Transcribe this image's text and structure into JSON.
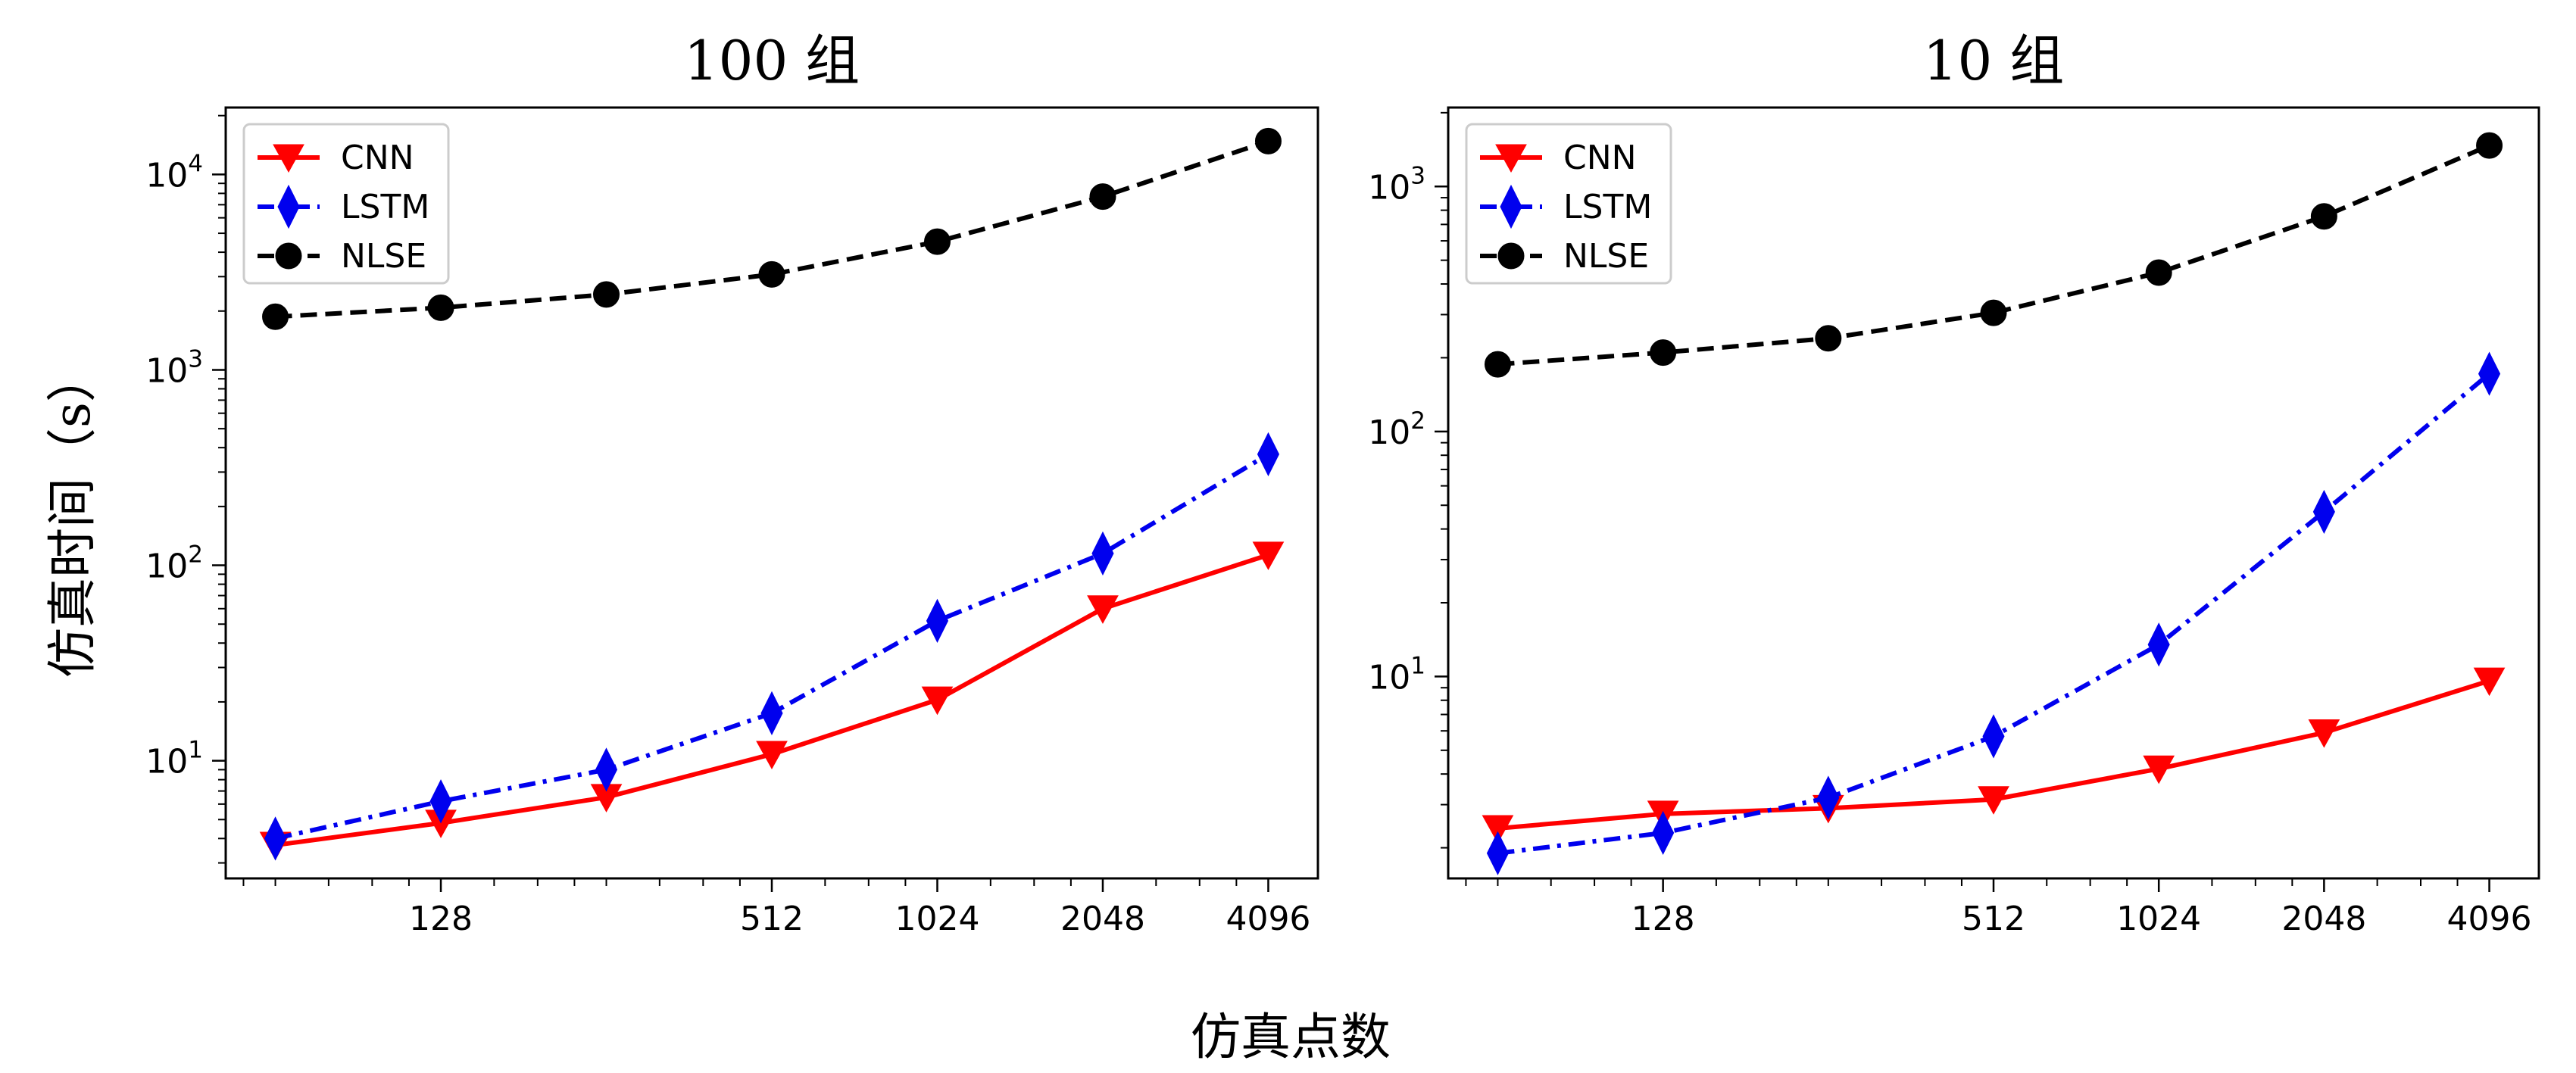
{
  "figure": {
    "ylabel": "仿真时间（s）",
    "xlabel": "仿真点数"
  },
  "colors": {
    "CNN": "#ff0000",
    "LSTM": "#0000ee",
    "NLSE": "#000000"
  },
  "chart_data": [
    {
      "type": "line",
      "title": "100 组",
      "xscale": "log2",
      "yscale": "log10",
      "x": [
        64,
        128,
        256,
        512,
        1024,
        2048,
        4096
      ],
      "xticks": [
        "128",
        "512",
        "1024",
        "2048",
        "4096"
      ],
      "xtick_values": [
        128,
        512,
        1024,
        2048,
        4096
      ],
      "yticks": [
        10,
        100,
        1000,
        10000
      ],
      "ytick_exponents": [
        "1",
        "2",
        "3",
        "4"
      ],
      "ylim": [
        2.5,
        22000
      ],
      "legend_position": "top-left",
      "series": [
        {
          "name": "CNN",
          "marker": "triangle-down",
          "linestyle": "solid",
          "values": [
            3.7,
            4.8,
            6.5,
            10.8,
            20.5,
            60,
            113
          ]
        },
        {
          "name": "LSTM",
          "marker": "thin-diamond",
          "linestyle": "dash-dot",
          "values": [
            4.0,
            6.2,
            9.0,
            17.5,
            52,
            115,
            370
          ]
        },
        {
          "name": "NLSE",
          "marker": "circle",
          "linestyle": "dashed",
          "values": [
            1870,
            2080,
            2430,
            3080,
            4530,
            7700,
            14800
          ]
        }
      ]
    },
    {
      "type": "line",
      "title": "10 组",
      "xscale": "log2",
      "yscale": "log10",
      "x": [
        64,
        128,
        256,
        512,
        1024,
        2048,
        4096
      ],
      "xticks": [
        "128",
        "512",
        "1024",
        "2048",
        "4096"
      ],
      "xtick_values": [
        128,
        512,
        1024,
        2048,
        4096
      ],
      "yticks": [
        10,
        100,
        1000
      ],
      "ytick_exponents": [
        "1",
        "2",
        "3"
      ],
      "ylim": [
        1.5,
        2100
      ],
      "legend_position": "top-left",
      "series": [
        {
          "name": "CNN",
          "marker": "triangle-down",
          "linestyle": "solid",
          "values": [
            2.4,
            2.75,
            2.9,
            3.15,
            4.2,
            5.9,
            9.6
          ]
        },
        {
          "name": "LSTM",
          "marker": "thin-diamond",
          "linestyle": "dash-dot",
          "values": [
            1.9,
            2.3,
            3.2,
            5.7,
            13.5,
            47,
            172
          ]
        },
        {
          "name": "NLSE",
          "marker": "circle",
          "linestyle": "dashed",
          "values": [
            188,
            210,
            240,
            305,
            445,
            755,
            1470
          ]
        }
      ]
    }
  ]
}
